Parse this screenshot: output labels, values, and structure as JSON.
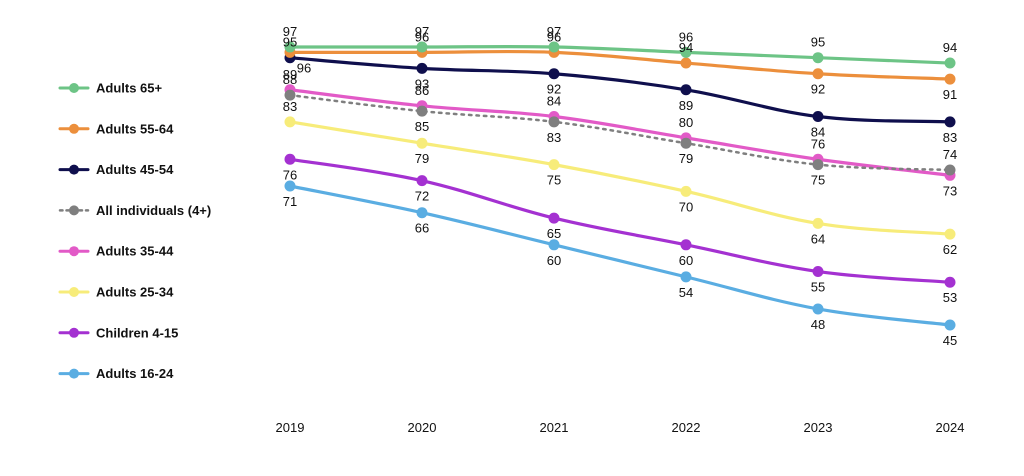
{
  "chart_data": {
    "type": "line",
    "title": "",
    "xlabel": "",
    "ylabel": "",
    "x": [
      "2019",
      "2020",
      "2021",
      "2022",
      "2023",
      "2024"
    ],
    "ylim": [
      45,
      97
    ],
    "grid": false,
    "legend_position": "left",
    "series": [
      {
        "name": "Adults 65+",
        "color": "#6dc486",
        "dashed": false,
        "values": [
          97,
          97,
          97,
          96,
          95,
          94
        ]
      },
      {
        "name": "Adults 55-64",
        "color": "#ec8f3c",
        "dashed": false,
        "values": [
          96,
          96,
          96,
          94,
          92,
          91
        ]
      },
      {
        "name": "Adults 45-54",
        "color": "#0f0f4d",
        "dashed": false,
        "values": [
          95,
          93,
          92,
          89,
          84,
          83
        ]
      },
      {
        "name": "All individuals (4+)",
        "color": "#7f7f7f",
        "dashed": true,
        "values": [
          88,
          85,
          83,
          79,
          75,
          74
        ]
      },
      {
        "name": "Adults 35-44",
        "color": "#e25ac7",
        "dashed": false,
        "values": [
          89,
          86,
          84,
          80,
          76,
          73
        ]
      },
      {
        "name": "Adults 25-34",
        "color": "#f7ec7a",
        "dashed": false,
        "values": [
          83,
          79,
          75,
          70,
          64,
          62
        ]
      },
      {
        "name": "Children 4-15",
        "color": "#a431d1",
        "dashed": false,
        "values": [
          76,
          72,
          65,
          60,
          55,
          53
        ]
      },
      {
        "name": "Adults 16-24",
        "color": "#5aade2",
        "dashed": false,
        "values": [
          71,
          66,
          60,
          54,
          48,
          45
        ]
      }
    ]
  }
}
